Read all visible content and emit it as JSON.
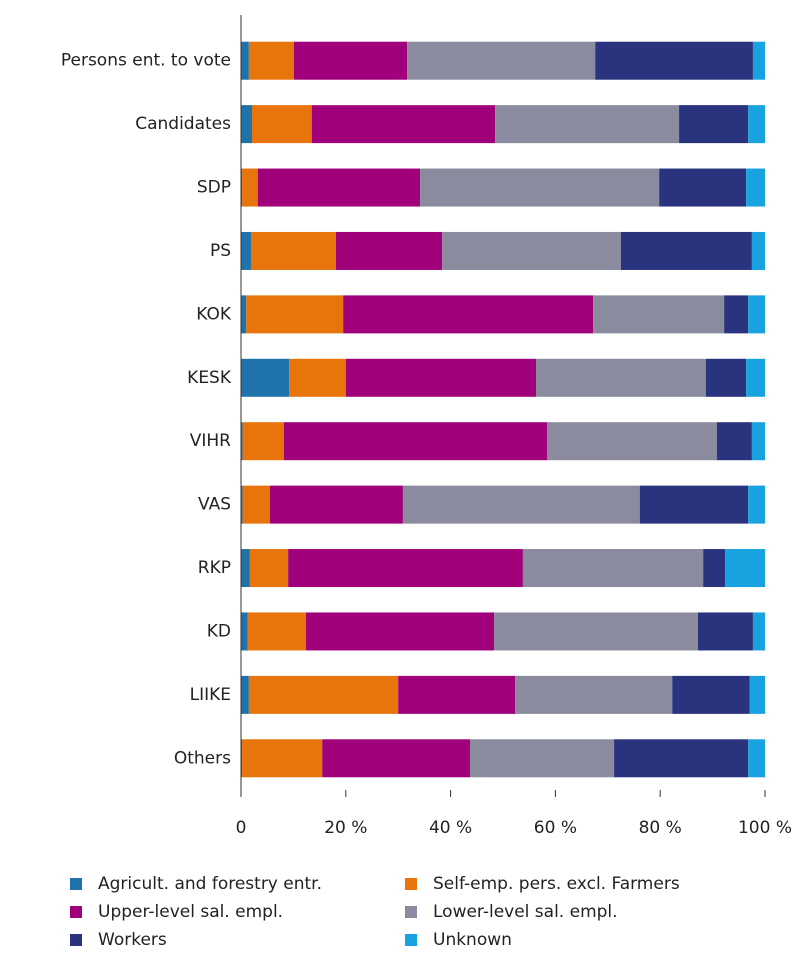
{
  "chart_data": {
    "type": "stacked-barh",
    "categories": [
      "Persons ent. to vote",
      "Candidates",
      "SDP",
      "PS",
      "KOK",
      "KESK",
      "VIHR",
      "VAS",
      "RKP",
      "KD",
      "LIIKE",
      "Others"
    ],
    "series": [
      {
        "name": "Agricult. and forestry entr.",
        "color": "#1f72aa",
        "values": [
          1.5,
          2.1,
          0.2,
          1.9,
          1.0,
          9.2,
          0.3,
          0.3,
          1.7,
          1.3,
          1.5,
          0.2
        ]
      },
      {
        "name": "Self-emp. pers. excl. Farmers",
        "color": "#e8740c",
        "values": [
          8.6,
          11.4,
          3.0,
          16.2,
          18.5,
          10.8,
          7.9,
          5.2,
          7.3,
          11.1,
          28.5,
          15.3
        ]
      },
      {
        "name": "Upper-level sal. empl.",
        "color": "#a0007a",
        "values": [
          21.6,
          35.0,
          31.0,
          20.3,
          47.7,
          36.3,
          50.2,
          25.4,
          44.8,
          35.9,
          22.3,
          28.2
        ]
      },
      {
        "name": "Lower-level sal. empl.",
        "color": "#8a8b9e",
        "values": [
          35.9,
          35.1,
          45.6,
          34.1,
          25.0,
          32.4,
          32.4,
          45.2,
          34.4,
          38.9,
          30.0,
          27.5
        ]
      },
      {
        "name": "Workers",
        "color": "#2a337e",
        "values": [
          30.1,
          13.2,
          16.6,
          25.0,
          4.6,
          7.7,
          6.7,
          20.7,
          4.2,
          10.5,
          14.8,
          25.6
        ]
      },
      {
        "name": "Unknown",
        "color": "#18a3e0",
        "values": [
          2.3,
          3.2,
          3.6,
          2.5,
          3.2,
          3.6,
          2.5,
          3.2,
          7.6,
          2.3,
          2.9,
          3.2
        ]
      }
    ],
    "xlim": [
      0,
      100
    ],
    "xticks": [
      0,
      {
        "value": 20,
        "label": "20 %"
      },
      {
        "value": 40,
        "label": "40 %"
      },
      {
        "value": 60,
        "label": "60 %"
      },
      {
        "value": 80,
        "label": "80 %"
      },
      {
        "value": 100,
        "label": "100 %"
      }
    ]
  }
}
